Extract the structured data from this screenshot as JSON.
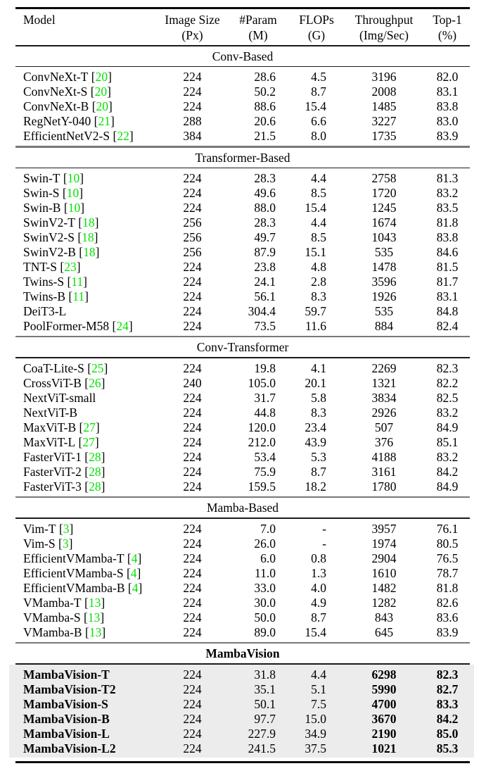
{
  "table": {
    "citation_color": "#00e400",
    "highlight_bg": "#ececec",
    "columns": [
      {
        "label": "Model",
        "sub": ""
      },
      {
        "label": "Image Size",
        "sub": "(Px)"
      },
      {
        "label": "#Param",
        "sub": "(M)"
      },
      {
        "label": "FLOPs",
        "sub": "(G)"
      },
      {
        "label": "Throughput",
        "sub": "(Img/Sec)"
      },
      {
        "label": "Top-1",
        "sub": "(%)"
      }
    ],
    "sections": [
      {
        "title": "Conv-Based",
        "bold_title": false,
        "highlight": false,
        "rows": [
          {
            "model": "ConvNeXt-T",
            "cite": "20",
            "size": "224",
            "param": "28.6",
            "flops": "4.5",
            "throughput": "3196",
            "top1": "82.0"
          },
          {
            "model": "ConvNeXt-S",
            "cite": "20",
            "size": "224",
            "param": "50.2",
            "flops": "8.7",
            "throughput": "2008",
            "top1": "83.1"
          },
          {
            "model": "ConvNeXt-B",
            "cite": "20",
            "size": "224",
            "param": "88.6",
            "flops": "15.4",
            "throughput": "1485",
            "top1": "83.8"
          },
          {
            "model": "RegNetY-040",
            "cite": "21",
            "size": "288",
            "param": "20.6",
            "flops": "6.6",
            "throughput": "3227",
            "top1": "83.0"
          },
          {
            "model": "EfficientNetV2-S",
            "cite": "22",
            "size": "384",
            "param": "21.5",
            "flops": "8.0",
            "throughput": "1735",
            "top1": "83.9"
          }
        ]
      },
      {
        "title": "Transformer-Based",
        "bold_title": false,
        "highlight": false,
        "rows": [
          {
            "model": "Swin-T",
            "cite": "10",
            "size": "224",
            "param": "28.3",
            "flops": "4.4",
            "throughput": "2758",
            "top1": "81.3"
          },
          {
            "model": "Swin-S",
            "cite": "10",
            "size": "224",
            "param": "49.6",
            "flops": "8.5",
            "throughput": "1720",
            "top1": "83.2"
          },
          {
            "model": "Swin-B",
            "cite": "10",
            "size": "224",
            "param": "88.0",
            "flops": "15.4",
            "throughput": "1245",
            "top1": "83.5"
          },
          {
            "model": "SwinV2-T",
            "cite": "18",
            "size": "256",
            "param": "28.3",
            "flops": "4.4",
            "throughput": "1674",
            "top1": "81.8"
          },
          {
            "model": "SwinV2-S",
            "cite": "18",
            "size": "256",
            "param": "49.7",
            "flops": "8.5",
            "throughput": "1043",
            "top1": "83.8"
          },
          {
            "model": "SwinV2-B",
            "cite": "18",
            "size": "256",
            "param": "87.9",
            "flops": "15.1",
            "throughput": "535",
            "top1": "84.6"
          },
          {
            "model": "TNT-S",
            "cite": "23",
            "size": "224",
            "param": "23.8",
            "flops": "4.8",
            "throughput": "1478",
            "top1": "81.5"
          },
          {
            "model": "Twins-S",
            "cite": "11",
            "size": "224",
            "param": "24.1",
            "flops": "2.8",
            "throughput": "3596",
            "top1": "81.7"
          },
          {
            "model": "Twins-B",
            "cite": "11",
            "size": "224",
            "param": "56.1",
            "flops": "8.3",
            "throughput": "1926",
            "top1": "83.1"
          },
          {
            "model": "DeiT3-L",
            "cite": "",
            "size": "224",
            "param": "304.4",
            "flops": "59.7",
            "throughput": "535",
            "top1": "84.8"
          },
          {
            "model": "PoolFormer-M58",
            "cite": "24",
            "size": "224",
            "param": "73.5",
            "flops": "11.6",
            "throughput": "884",
            "top1": "82.4"
          }
        ]
      },
      {
        "title": "Conv-Transformer",
        "bold_title": false,
        "highlight": false,
        "rows": [
          {
            "model": "CoaT-Lite-S",
            "cite": "25",
            "size": "224",
            "param": "19.8",
            "flops": "4.1",
            "throughput": "2269",
            "top1": "82.3"
          },
          {
            "model": "CrossViT-B",
            "cite": "26",
            "size": "240",
            "param": "105.0",
            "flops": "20.1",
            "throughput": "1321",
            "top1": "82.2"
          },
          {
            "model": "NextViT-small",
            "cite": "",
            "size": "224",
            "param": "31.7",
            "flops": "5.8",
            "throughput": "3834",
            "top1": "82.5"
          },
          {
            "model": "NextViT-B",
            "cite": "",
            "size": "224",
            "param": "44.8",
            "flops": "8.3",
            "throughput": "2926",
            "top1": "83.2"
          },
          {
            "model": "MaxViT-B",
            "cite": "27",
            "size": "224",
            "param": "120.0",
            "flops": "23.4",
            "throughput": "507",
            "top1": "84.9"
          },
          {
            "model": "MaxViT-L",
            "cite": "27",
            "size": "224",
            "param": "212.0",
            "flops": "43.9",
            "throughput": "376",
            "top1": "85.1"
          },
          {
            "model": "FasterViT-1",
            "cite": "28",
            "size": "224",
            "param": "53.4",
            "flops": "5.3",
            "throughput": "4188",
            "top1": "83.2"
          },
          {
            "model": "FasterViT-2",
            "cite": "28",
            "size": "224",
            "param": "75.9",
            "flops": "8.7",
            "throughput": "3161",
            "top1": "84.2"
          },
          {
            "model": "FasterViT-3",
            "cite": "28",
            "size": "224",
            "param": "159.5",
            "flops": "18.2",
            "throughput": "1780",
            "top1": "84.9"
          }
        ]
      },
      {
        "title": "Mamba-Based",
        "bold_title": false,
        "highlight": false,
        "rows": [
          {
            "model": "Vim-T",
            "cite": "3",
            "size": "224",
            "param": "7.0",
            "flops": "-",
            "throughput": "3957",
            "top1": "76.1"
          },
          {
            "model": "Vim-S",
            "cite": "3",
            "size": "224",
            "param": "26.0",
            "flops": "-",
            "throughput": "1974",
            "top1": "80.5"
          },
          {
            "model": "EfficientVMamba-T",
            "cite": "4",
            "size": "224",
            "param": "6.0",
            "flops": "0.8",
            "throughput": "2904",
            "top1": "76.5"
          },
          {
            "model": "EfficientVMamba-S",
            "cite": "4",
            "size": "224",
            "param": "11.0",
            "flops": "1.3",
            "throughput": "1610",
            "top1": "78.7"
          },
          {
            "model": "EfficientVMamba-B",
            "cite": "4",
            "size": "224",
            "param": "33.0",
            "flops": "4.0",
            "throughput": "1482",
            "top1": "81.8"
          },
          {
            "model": "VMamba-T",
            "cite": "13",
            "size": "224",
            "param": "30.0",
            "flops": "4.9",
            "throughput": "1282",
            "top1": "82.6"
          },
          {
            "model": "VMamba-S",
            "cite": "13",
            "size": "224",
            "param": "50.0",
            "flops": "8.7",
            "throughput": "843",
            "top1": "83.6"
          },
          {
            "model": "VMamba-B",
            "cite": "13",
            "size": "224",
            "param": "89.0",
            "flops": "15.4",
            "throughput": "645",
            "top1": "83.9"
          }
        ]
      },
      {
        "title": "MambaVision",
        "bold_title": true,
        "highlight": true,
        "rows": [
          {
            "model": "MambaVision-T",
            "cite": "",
            "size": "224",
            "param": "31.8",
            "flops": "4.4",
            "throughput": "6298",
            "top1": "82.3"
          },
          {
            "model": "MambaVision-T2",
            "cite": "",
            "size": "224",
            "param": "35.1",
            "flops": "5.1",
            "throughput": "5990",
            "top1": "82.7"
          },
          {
            "model": "MambaVision-S",
            "cite": "",
            "size": "224",
            "param": "50.1",
            "flops": "7.5",
            "throughput": "4700",
            "top1": "83.3"
          },
          {
            "model": "MambaVision-B",
            "cite": "",
            "size": "224",
            "param": "97.7",
            "flops": "15.0",
            "throughput": "3670",
            "top1": "84.2"
          },
          {
            "model": "MambaVision-L",
            "cite": "",
            "size": "224",
            "param": "227.9",
            "flops": "34.9",
            "throughput": "2190",
            "top1": "85.0"
          },
          {
            "model": "MambaVision-L2",
            "cite": "",
            "size": "224",
            "param": "241.5",
            "flops": "37.5",
            "throughput": "1021",
            "top1": "85.3"
          }
        ]
      }
    ]
  }
}
